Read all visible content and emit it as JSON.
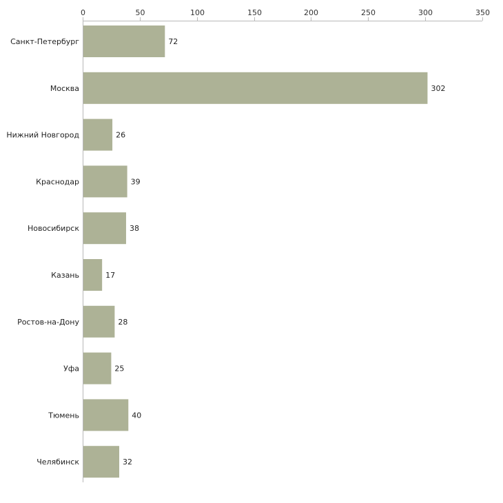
{
  "chart_data": {
    "type": "bar",
    "orientation": "horizontal",
    "title": "",
    "xlabel": "",
    "ylabel": "",
    "xlim": [
      0,
      350
    ],
    "ticks": [
      0,
      50,
      100,
      150,
      200,
      250,
      300,
      350
    ],
    "tick_labels": [
      "0",
      "50",
      "100",
      "150",
      "200",
      "250",
      "300",
      "350"
    ],
    "axis_position": "top",
    "grid": false,
    "bar_color": "#adb296",
    "axis_color": "#b8b8b8",
    "categories": [
      "Санкт-Петербург",
      "Москва",
      "Нижний Новгород",
      "Краснодар",
      "Новосибирск",
      "Казань",
      "Ростов-на-Дону",
      "Уфа",
      "Тюмень",
      "Челябинск"
    ],
    "values": [
      72,
      302,
      26,
      39,
      38,
      17,
      28,
      25,
      40,
      32
    ],
    "value_labels": [
      "72",
      "302",
      "26",
      "39",
      "38",
      "17",
      "28",
      "25",
      "40",
      "32"
    ]
  }
}
